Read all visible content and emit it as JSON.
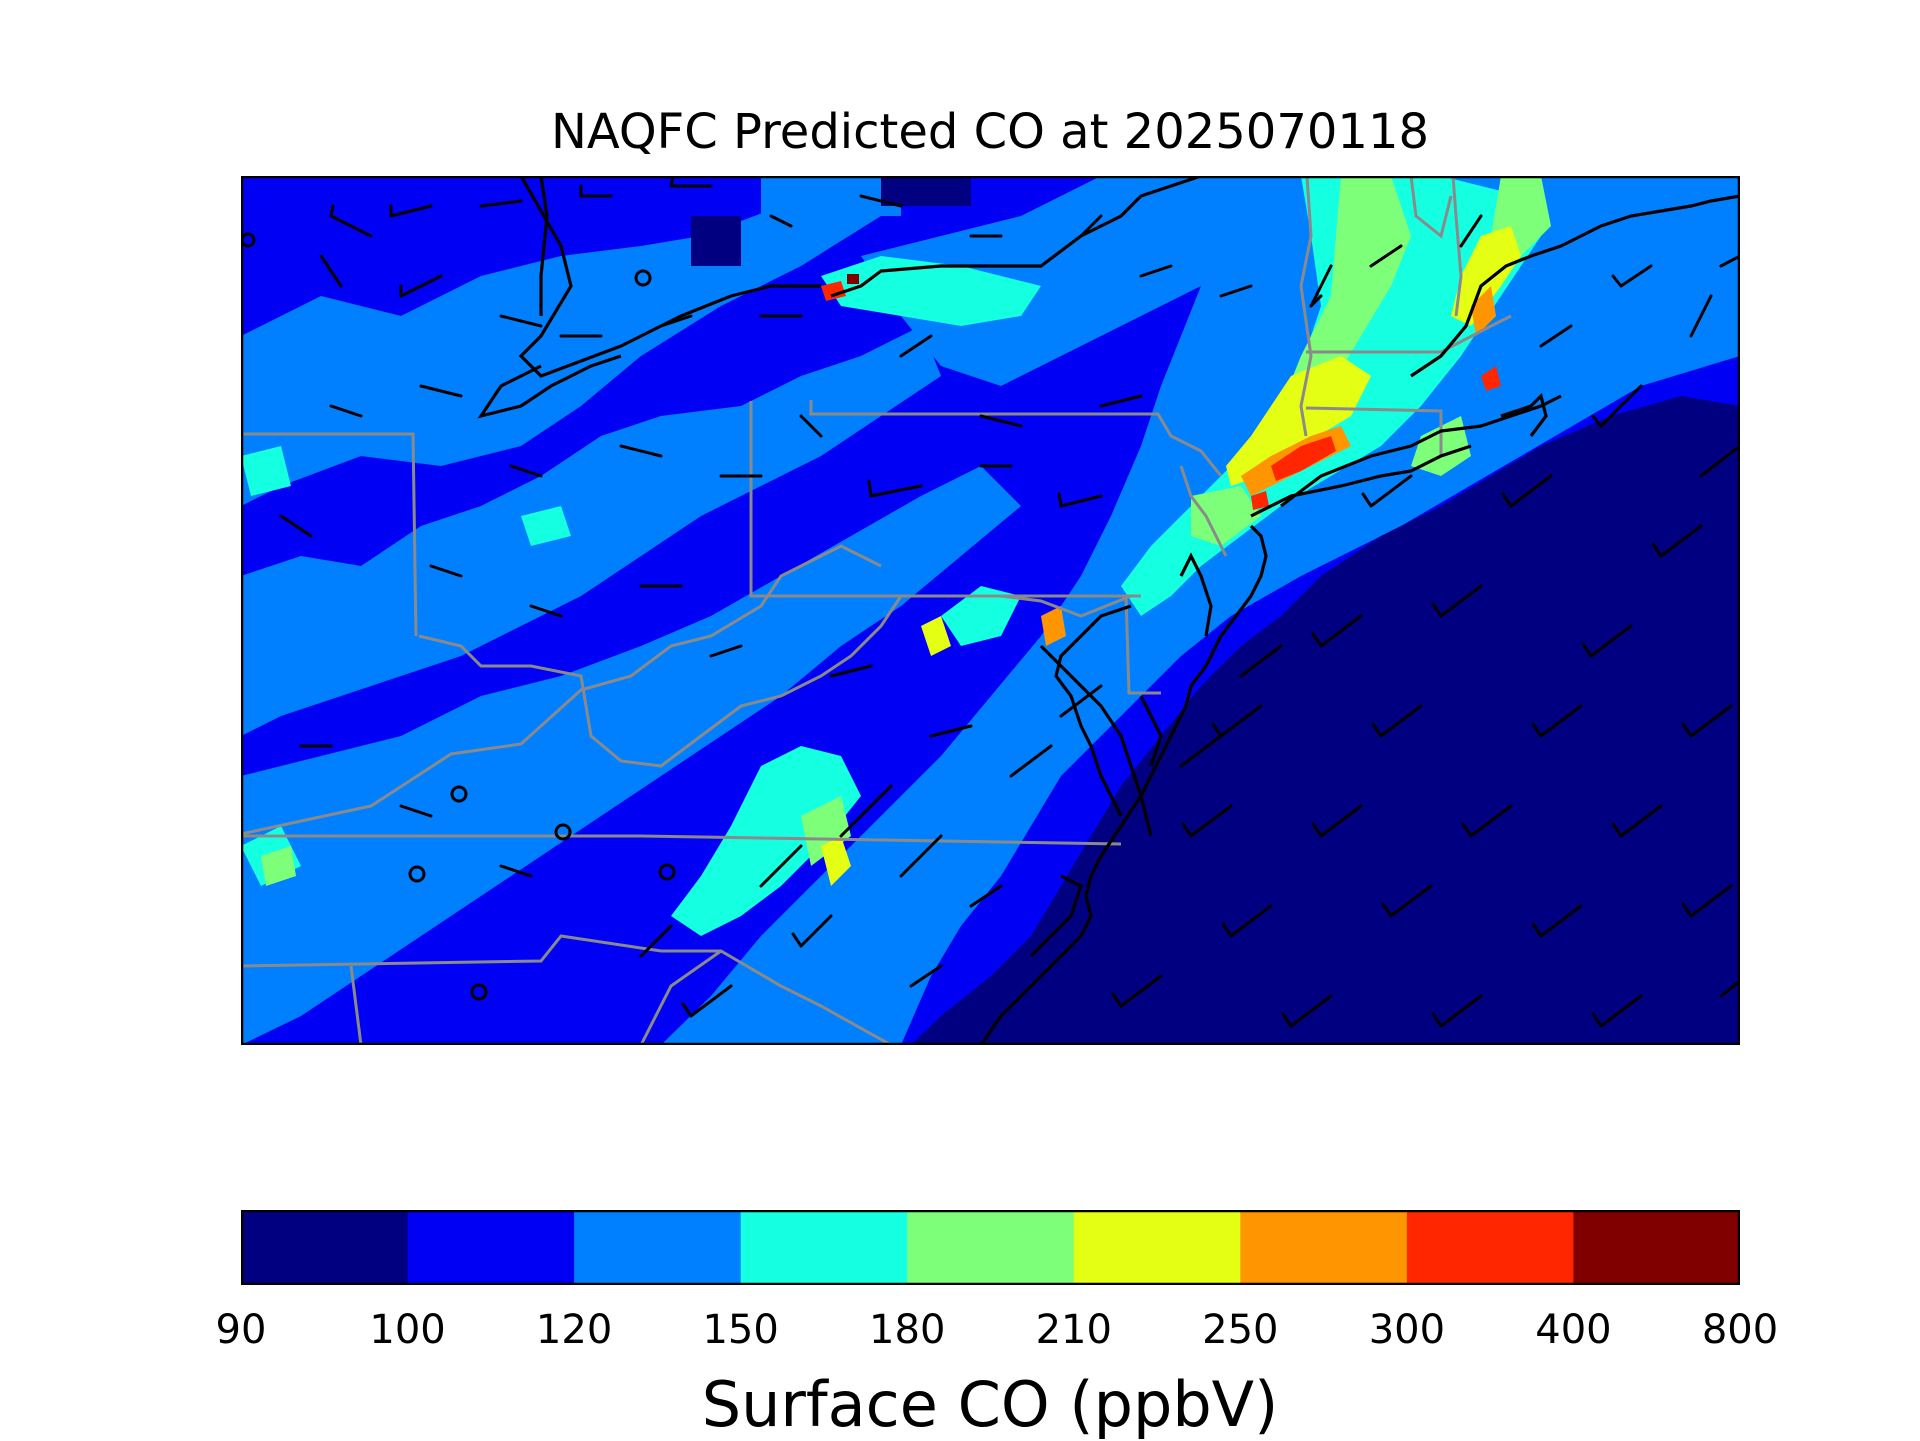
{
  "title": "NAQFC Predicted CO at 2025070118",
  "colorbar": {
    "label": "Surface CO (ppbV)",
    "ticks": [
      "90",
      "100",
      "120",
      "150",
      "180",
      "210",
      "250",
      "300",
      "400",
      "800"
    ],
    "bins": [
      {
        "range": "90-100",
        "color": "#000080"
      },
      {
        "range": "100-120",
        "color": "#0000f5"
      },
      {
        "range": "120-150",
        "color": "#0080ff"
      },
      {
        "range": "150-180",
        "color": "#15ffe1"
      },
      {
        "range": "180-210",
        "color": "#7dff7a"
      },
      {
        "range": "210-250",
        "color": "#e4ff13"
      },
      {
        "range": "250-300",
        "color": "#ff9500"
      },
      {
        "range": "300-400",
        "color": "#ff2600"
      },
      {
        "range": "400-800",
        "color": "#800000"
      }
    ]
  },
  "map": {
    "colors": {
      "background_level": "#0000f5",
      "ocean_level": "#000080",
      "coastline": "#000000",
      "state_boundary": "#8a8a8a",
      "wind_barb": "#000000"
    },
    "features": [
      "co-concentration-field",
      "state-boundaries",
      "coastline",
      "wind-barbs",
      "calm-wind-circles"
    ]
  }
}
